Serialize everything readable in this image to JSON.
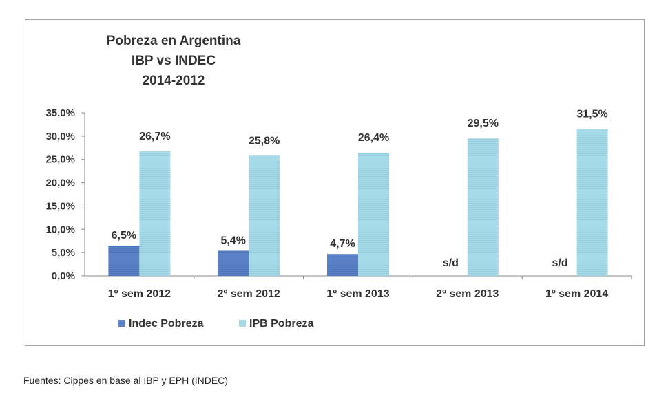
{
  "title_lines": [
    "Pobreza en Argentina",
    "IBP vs INDEC",
    "2014-2012"
  ],
  "footer": "Fuentes: Cippes en base al IBP  y EPH (INDEC)",
  "chart_data": {
    "type": "bar",
    "title": "Pobreza en Argentina IBP vs INDEC 2014-2012",
    "categories": [
      "1º sem 2012",
      "2º sem 2012",
      "1º sem 2013",
      "2º sem 2013",
      "1º sem 2014"
    ],
    "ylim": [
      0,
      35
    ],
    "yticks": [
      "0,0%",
      "5,0%",
      "10,0%",
      "15,0%",
      "20,0%",
      "25,0%",
      "30,0%",
      "35,0%"
    ],
    "grid": false,
    "legend_position": "bottom-left",
    "series": [
      {
        "name": "Indec Pobreza",
        "color": "#5b82c8",
        "values": [
          6.5,
          5.4,
          4.7,
          null,
          null
        ],
        "labels": [
          "6,5%",
          "5,4%",
          "4,7%",
          "s/d",
          "s/d"
        ]
      },
      {
        "name": "IPB Pobreza",
        "color": "#a8dbe9",
        "values": [
          26.7,
          25.8,
          26.4,
          29.5,
          31.5
        ],
        "labels": [
          "26,7%",
          "25,8%",
          "26,4%",
          "29,5%",
          "31,5%"
        ]
      }
    ]
  }
}
